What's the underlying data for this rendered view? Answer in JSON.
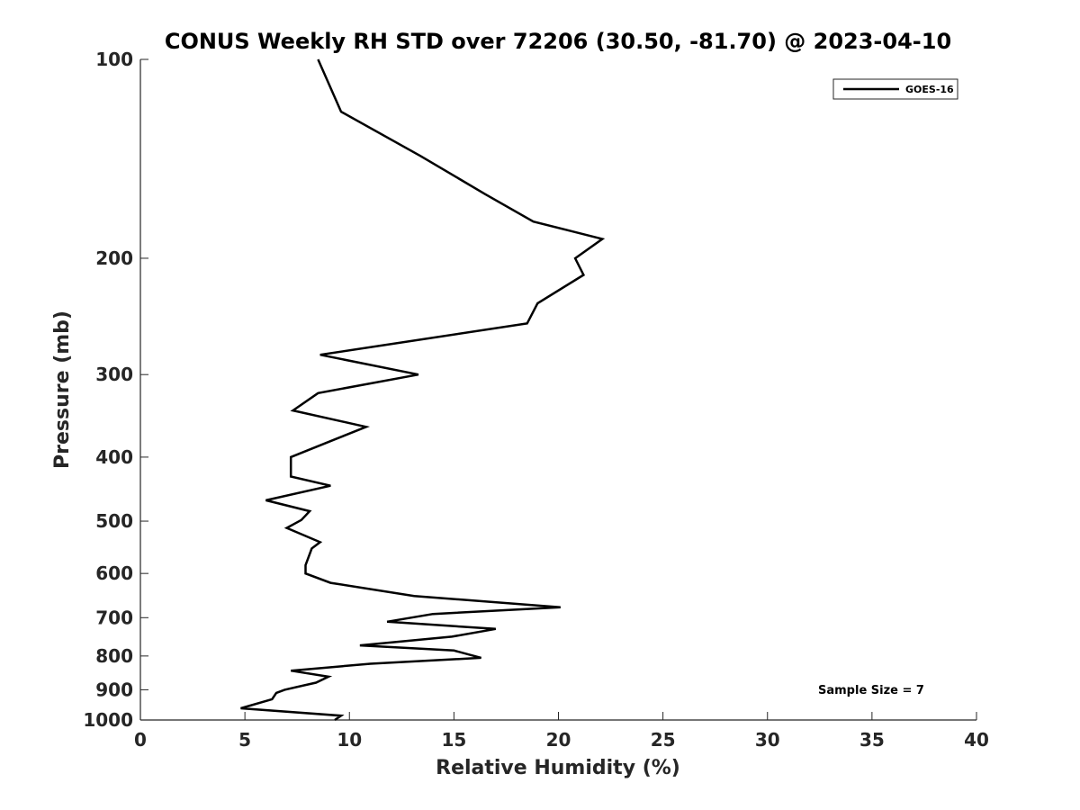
{
  "chart_data": {
    "type": "line",
    "title": "CONUS Weekly RH STD over 72206 (30.50, -81.70) @ 2023-04-10",
    "xlabel": "Relative Humidity (%)",
    "ylabel": "Pressure (mb)",
    "xlim": [
      0,
      40
    ],
    "ylim": [
      1000,
      100
    ],
    "y_scale": "log",
    "y_reversed": true,
    "x_ticks": [
      "0",
      "5",
      "10",
      "15",
      "20",
      "25",
      "30",
      "35",
      "40"
    ],
    "y_ticks": [
      "100",
      "200",
      "300",
      "400",
      "500",
      "600",
      "700",
      "800",
      "900",
      "1000"
    ],
    "grid": false,
    "legend_position": "top-right",
    "annotation": "Sample Size = 7",
    "series": [
      {
        "name": "GOES-16",
        "color": "#000000",
        "points": [
          [
            8.5,
            100
          ],
          [
            9.6,
            120
          ],
          [
            13.4,
            140
          ],
          [
            16.5,
            160
          ],
          [
            18.8,
            176
          ],
          [
            22.1,
            187
          ],
          [
            20.8,
            200
          ],
          [
            21.2,
            212
          ],
          [
            19.0,
            234
          ],
          [
            18.5,
            251
          ],
          [
            8.6,
            280
          ],
          [
            13.3,
            300
          ],
          [
            8.5,
            320
          ],
          [
            7.3,
            340
          ],
          [
            10.8,
            360
          ],
          [
            9.4,
            375
          ],
          [
            7.2,
            400
          ],
          [
            7.2,
            428
          ],
          [
            9.1,
            442
          ],
          [
            6.0,
            465
          ],
          [
            8.1,
            483
          ],
          [
            7.7,
            498
          ],
          [
            7.0,
            512
          ],
          [
            8.6,
            538
          ],
          [
            8.2,
            550
          ],
          [
            7.9,
            583
          ],
          [
            7.9,
            600
          ],
          [
            9.1,
            620
          ],
          [
            13.1,
            649
          ],
          [
            20.1,
            675
          ],
          [
            14.0,
            691
          ],
          [
            11.8,
            710
          ],
          [
            17.0,
            728
          ],
          [
            14.9,
            748
          ],
          [
            10.5,
            771
          ],
          [
            15.0,
            785
          ],
          [
            16.3,
            805
          ],
          [
            11.0,
            822
          ],
          [
            7.2,
            842
          ],
          [
            9.0,
            860
          ],
          [
            8.4,
            878
          ],
          [
            6.9,
            900
          ],
          [
            6.5,
            910
          ],
          [
            6.3,
            930
          ],
          [
            4.8,
            960
          ],
          [
            9.6,
            985
          ],
          [
            9.3,
            1000
          ]
        ]
      }
    ]
  }
}
